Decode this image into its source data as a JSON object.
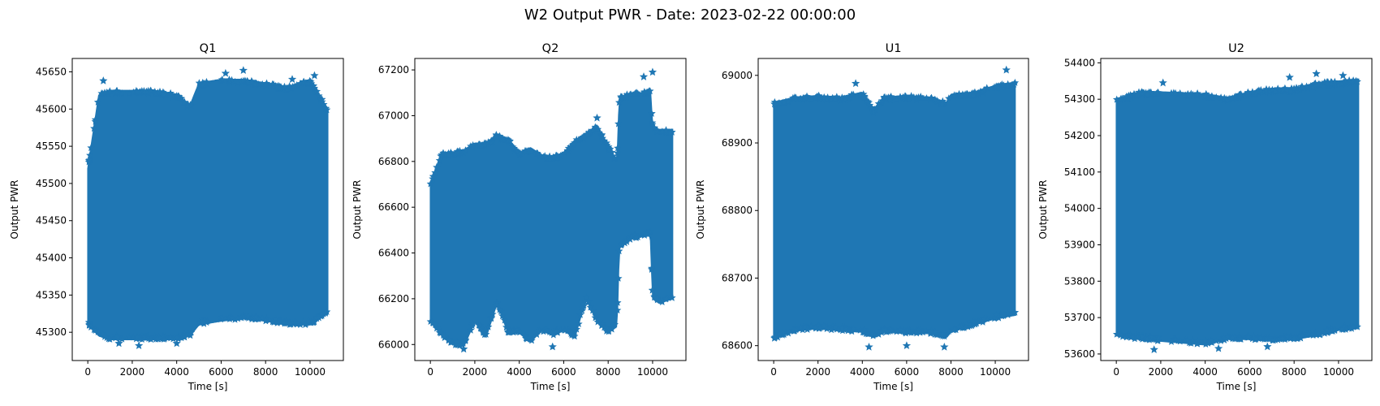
{
  "figure": {
    "title": "W2 Output PWR - Date: 2023-02-22 00:00:00",
    "series_color": "#1f77b4",
    "marker": "star"
  },
  "chart_data": [
    {
      "type": "scatter",
      "title": "Q1",
      "xlabel": "Time [s]",
      "ylabel": "Output PWR",
      "xlim": [
        -700,
        11500
      ],
      "ylim": [
        45262,
        45668
      ],
      "xticks": [
        0,
        2000,
        4000,
        6000,
        8000,
        10000
      ],
      "yticks": [
        45300,
        45350,
        45400,
        45450,
        45500,
        45550,
        45600,
        45650
      ],
      "x_range": [
        0,
        10800
      ],
      "band": {
        "x": [
          0,
          500,
          1000,
          2000,
          3000,
          4000,
          4600,
          5000,
          6000,
          7000,
          8000,
          9000,
          10000,
          10800
        ],
        "upper": [
          45520,
          45620,
          45625,
          45625,
          45625,
          45620,
          45605,
          45635,
          45640,
          45640,
          45635,
          45630,
          45640,
          45600
        ],
        "lower": [
          45310,
          45295,
          45290,
          45290,
          45290,
          45290,
          45295,
          45310,
          45315,
          45318,
          45315,
          45310,
          45310,
          45325
        ]
      },
      "outliers": [
        [
          700,
          45638
        ],
        [
          6200,
          45648
        ],
        [
          7000,
          45652
        ],
        [
          9200,
          45640
        ],
        [
          10200,
          45645
        ],
        [
          2300,
          45282
        ],
        [
          4000,
          45285
        ],
        [
          1400,
          45285
        ]
      ]
    },
    {
      "type": "scatter",
      "title": "Q2",
      "xlabel": "Time [s]",
      "ylabel": "Output PWR",
      "xlim": [
        -700,
        11500
      ],
      "ylim": [
        65930,
        67250
      ],
      "xticks": [
        0,
        2000,
        4000,
        6000,
        8000,
        10000
      ],
      "yticks": [
        66000,
        66200,
        66400,
        66600,
        66800,
        67000,
        67200
      ],
      "x_range": [
        0,
        10900
      ],
      "band": {
        "x": [
          0,
          500,
          1000,
          1500,
          2000,
          2500,
          3000,
          3500,
          4000,
          4500,
          5000,
          5500,
          6000,
          6500,
          7000,
          7500,
          8000,
          8400,
          8500,
          9000,
          9500,
          9900,
          10000,
          10300,
          10900
        ],
        "upper": [
          66700,
          66840,
          66840,
          66850,
          66880,
          66880,
          66920,
          66900,
          66840,
          66860,
          66830,
          66820,
          66840,
          66890,
          66920,
          66960,
          66870,
          66800,
          67080,
          67100,
          67100,
          67120,
          66950,
          66940,
          66940
        ],
        "lower": [
          66100,
          66040,
          66000,
          65990,
          66100,
          66030,
          66180,
          66050,
          66050,
          66010,
          66060,
          66040,
          66060,
          66030,
          66200,
          66100,
          66050,
          66080,
          66420,
          66460,
          66470,
          66480,
          66200,
          66180,
          66200
        ]
      },
      "outliers": [
        [
          7500,
          66990
        ],
        [
          9600,
          67170
        ],
        [
          10000,
          67190
        ],
        [
          1500,
          65980
        ],
        [
          5500,
          65990
        ]
      ]
    },
    {
      "type": "scatter",
      "title": "U1",
      "xlabel": "Time [s]",
      "ylabel": "Output PWR",
      "xlim": [
        -700,
        11500
      ],
      "ylim": [
        68578,
        69025
      ],
      "xticks": [
        0,
        2000,
        4000,
        6000,
        8000,
        10000
      ],
      "yticks": [
        68600,
        68700,
        68800,
        68900,
        69000
      ],
      "x_range": [
        0,
        10900
      ],
      "band": {
        "x": [
          0,
          1000,
          2000,
          3000,
          4000,
          4500,
          5000,
          6000,
          7000,
          7800,
          8000,
          9000,
          10000,
          10900
        ],
        "upper": [
          68960,
          68968,
          68970,
          68968,
          68975,
          68950,
          68968,
          68970,
          68968,
          68960,
          68972,
          68975,
          68985,
          68990
        ],
        "lower": [
          68610,
          68622,
          68625,
          68622,
          68620,
          68612,
          68620,
          68618,
          68618,
          68612,
          68620,
          68630,
          68640,
          68645
        ]
      },
      "outliers": [
        [
          3700,
          68988
        ],
        [
          10500,
          69008
        ],
        [
          4300,
          68598
        ],
        [
          6000,
          68600
        ],
        [
          7700,
          68598
        ]
      ]
    },
    {
      "type": "scatter",
      "title": "U2",
      "xlabel": "Time [s]",
      "ylabel": "Output PWR",
      "xlim": [
        -700,
        11500
      ],
      "ylim": [
        53582,
        54412
      ],
      "xticks": [
        0,
        2000,
        4000,
        6000,
        8000,
        10000
      ],
      "yticks": [
        53600,
        53700,
        53800,
        53900,
        54000,
        54100,
        54200,
        54300,
        54400
      ],
      "x_range": [
        0,
        10900
      ],
      "band": {
        "x": [
          0,
          1000,
          2000,
          3000,
          4000,
          5000,
          6000,
          7000,
          8000,
          9000,
          10000,
          10900
        ],
        "upper": [
          54300,
          54320,
          54320,
          54318,
          54315,
          54305,
          54320,
          54330,
          54330,
          54345,
          54350,
          54355
        ],
        "lower": [
          53650,
          53640,
          53635,
          53630,
          53625,
          53640,
          53640,
          53635,
          53640,
          53650,
          53665,
          53670
        ]
      },
      "outliers": [
        [
          2100,
          54345
        ],
        [
          7800,
          54360
        ],
        [
          9000,
          54370
        ],
        [
          10200,
          54365
        ],
        [
          1700,
          53612
        ],
        [
          4600,
          53615
        ],
        [
          6800,
          53620
        ]
      ]
    }
  ]
}
